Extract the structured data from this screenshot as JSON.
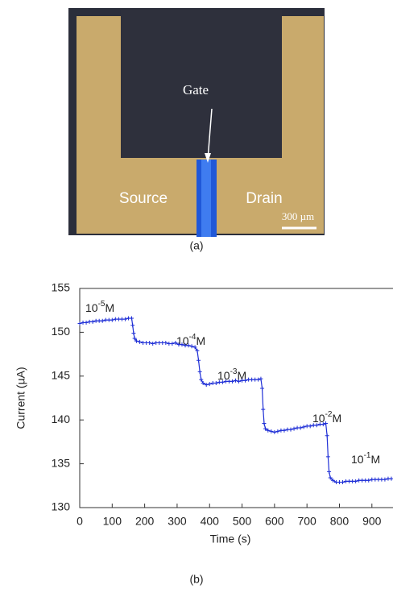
{
  "figure_a": {
    "gate": "Gate",
    "source": "Source",
    "drain": "Drain",
    "scale": "300 µm",
    "caption": "(a)"
  },
  "chart_data": {
    "type": "line",
    "ylabel": "Current  (µA)",
    "xlabel": "Time (s)",
    "caption": "(b)",
    "xlim": [
      0,
      965
    ],
    "ylim": [
      130,
      155
    ],
    "xticks": [
      0,
      100,
      200,
      300,
      400,
      500,
      600,
      700,
      800,
      900
    ],
    "yticks": [
      130,
      135,
      140,
      145,
      150,
      155
    ],
    "annotations": [
      {
        "base": "10",
        "exponent": "-5",
        "unit": "M"
      },
      {
        "base": "10",
        "exponent": "-4",
        "unit": "M"
      },
      {
        "base": "10",
        "exponent": "-3",
        "unit": "M"
      },
      {
        "base": "10",
        "exponent": "-2",
        "unit": "M"
      },
      {
        "base": "10",
        "exponent": "-1",
        "unit": "M"
      }
    ],
    "series": [
      {
        "color": "#1f2fd6",
        "x": [
          0,
          10,
          20,
          30,
          40,
          50,
          60,
          70,
          80,
          90,
          100,
          110,
          120,
          130,
          140,
          150,
          160,
          163,
          166,
          169,
          175,
          185,
          195,
          205,
          215,
          225,
          235,
          245,
          255,
          265,
          275,
          285,
          295,
          305,
          315,
          325,
          335,
          345,
          355,
          362,
          366,
          370,
          374,
          380,
          390,
          400,
          410,
          420,
          430,
          440,
          450,
          460,
          470,
          480,
          490,
          500,
          510,
          520,
          530,
          540,
          550,
          558,
          562,
          565,
          568,
          572,
          580,
          590,
          600,
          610,
          620,
          630,
          640,
          650,
          660,
          670,
          680,
          690,
          700,
          710,
          720,
          730,
          740,
          750,
          758,
          762,
          765,
          768,
          772,
          780,
          790,
          800,
          810,
          820,
          830,
          840,
          850,
          860,
          870,
          880,
          890,
          900,
          910,
          920,
          930,
          940,
          950,
          960
        ],
        "values": [
          151.0,
          151.1,
          151.1,
          151.2,
          151.2,
          151.3,
          151.3,
          151.3,
          151.4,
          151.4,
          151.4,
          151.5,
          151.5,
          151.5,
          151.5,
          151.6,
          151.6,
          150.8,
          149.9,
          149.3,
          149.0,
          148.9,
          148.8,
          148.8,
          148.8,
          148.7,
          148.8,
          148.8,
          148.8,
          148.8,
          148.7,
          148.7,
          148.8,
          148.6,
          148.6,
          148.5,
          148.5,
          148.4,
          148.3,
          147.9,
          146.8,
          145.5,
          144.6,
          144.2,
          144.0,
          144.1,
          144.2,
          144.2,
          144.3,
          144.3,
          144.4,
          144.4,
          144.4,
          144.5,
          144.4,
          144.5,
          144.5,
          144.6,
          144.6,
          144.6,
          144.6,
          144.7,
          143.6,
          141.2,
          139.6,
          139.0,
          138.8,
          138.7,
          138.6,
          138.7,
          138.8,
          138.8,
          138.9,
          138.9,
          139.0,
          139.1,
          139.1,
          139.2,
          139.3,
          139.3,
          139.4,
          139.4,
          139.5,
          139.5,
          139.6,
          138.2,
          135.8,
          134.1,
          133.4,
          133.1,
          132.9,
          132.9,
          132.9,
          133.0,
          133.0,
          133.0,
          133.0,
          133.1,
          133.1,
          133.1,
          133.1,
          133.2,
          133.2,
          133.2,
          133.2,
          133.2,
          133.3,
          133.3
        ]
      }
    ]
  }
}
